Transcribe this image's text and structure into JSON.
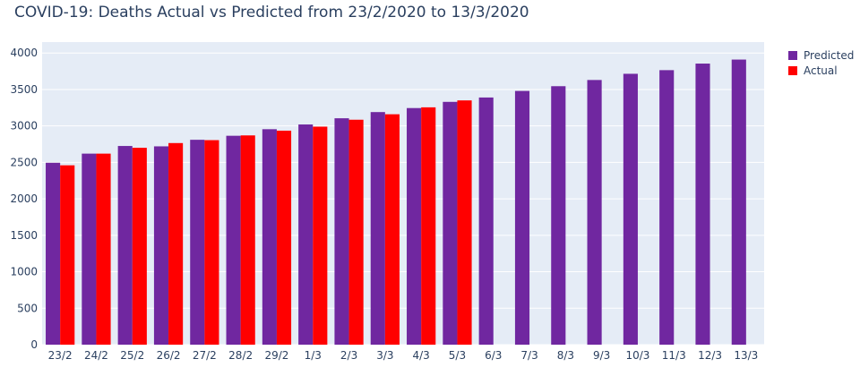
{
  "chart_data": {
    "type": "bar",
    "title": "COVID-19: Deaths Actual vs Predicted from 23/2/2020 to 13/3/2020",
    "xlabel": "",
    "ylabel": "",
    "ylim": [
      0,
      4150
    ],
    "yticks": [
      0,
      500,
      1000,
      1500,
      2000,
      2500,
      3000,
      3500,
      4000
    ],
    "grid": true,
    "legend_position": "top-right",
    "categories": [
      "23/2",
      "24/2",
      "25/2",
      "26/2",
      "27/2",
      "28/2",
      "29/2",
      "1/3",
      "2/3",
      "3/3",
      "4/3",
      "5/3",
      "6/3",
      "7/3",
      "8/3",
      "9/3",
      "10/3",
      "11/3",
      "12/3",
      "13/3"
    ],
    "series": [
      {
        "name": "Predicted",
        "color": "#7027a0",
        "values": [
          2495,
          2620,
          2725,
          2720,
          2810,
          2865,
          2955,
          3020,
          3105,
          3190,
          3245,
          3330,
          3390,
          3480,
          3545,
          3630,
          3715,
          3765,
          3855,
          3910
        ]
      },
      {
        "name": "Actual",
        "color": "#ff0000",
        "values": [
          2460,
          2620,
          2700,
          2765,
          2805,
          2870,
          2935,
          2990,
          3085,
          3160,
          3255,
          3350,
          null,
          null,
          null,
          null,
          null,
          null,
          null,
          null
        ]
      }
    ]
  }
}
